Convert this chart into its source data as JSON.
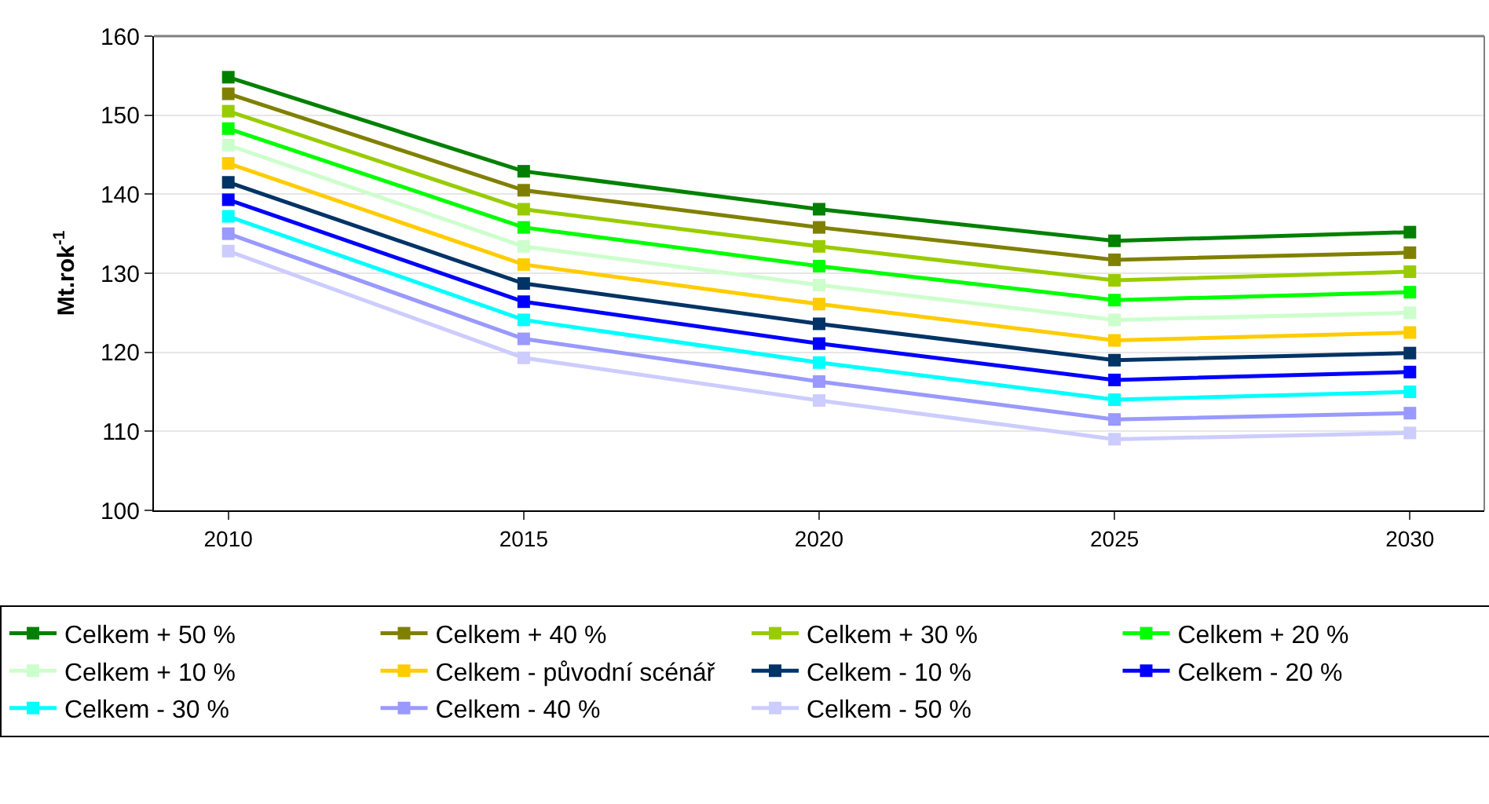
{
  "chart_data": {
    "type": "line",
    "ylabel": "Mt.rok$^{-1}$",
    "categories": [
      "2010",
      "2015",
      "2020",
      "2025",
      "2030"
    ],
    "ylim": [
      100,
      160
    ],
    "yticks": [
      100,
      110,
      120,
      130,
      140,
      150,
      160
    ],
    "grid": "y",
    "legend": "bottom",
    "marker": "square",
    "line_style": "solid",
    "series": [
      {
        "name": "Celkem + 50 %",
        "color": "#008000",
        "values": [
          154.8,
          142.9,
          138.1,
          134.1,
          135.2
        ]
      },
      {
        "name": "Celkem + 40 %",
        "color": "#808000",
        "values": [
          152.7,
          140.5,
          135.8,
          131.7,
          132.6
        ]
      },
      {
        "name": "Celkem + 30 %",
        "color": "#99cc00",
        "values": [
          150.5,
          138.1,
          133.4,
          129.1,
          130.2
        ]
      },
      {
        "name": "Celkem + 20 %",
        "color": "#00ff00",
        "values": [
          148.3,
          135.8,
          130.9,
          126.6,
          127.6
        ]
      },
      {
        "name": "Celkem + 10 %",
        "color": "#ccffcc",
        "values": [
          146.2,
          133.4,
          128.5,
          124.1,
          125.0
        ]
      },
      {
        "name": "Celkem - původní scénář",
        "color": "#ffcc00",
        "values": [
          143.9,
          131.1,
          126.1,
          121.5,
          122.5
        ]
      },
      {
        "name": "Celkem - 10 %",
        "color": "#003366",
        "values": [
          141.5,
          128.7,
          123.6,
          119.0,
          119.9
        ]
      },
      {
        "name": "Celkem - 20 %",
        "color": "#0000ff",
        "values": [
          139.3,
          126.4,
          121.1,
          116.5,
          117.5
        ]
      },
      {
        "name": "Celkem - 30 %",
        "color": "#00ffff",
        "values": [
          137.2,
          124.1,
          118.7,
          114.0,
          115.0
        ]
      },
      {
        "name": "Celkem - 40 %",
        "color": "#9999ff",
        "values": [
          135.0,
          121.7,
          116.3,
          111.5,
          112.3
        ]
      },
      {
        "name": "Celkem - 50 %",
        "color": "#ccccff",
        "values": [
          132.8,
          119.3,
          113.9,
          109.0,
          109.8
        ]
      }
    ]
  }
}
